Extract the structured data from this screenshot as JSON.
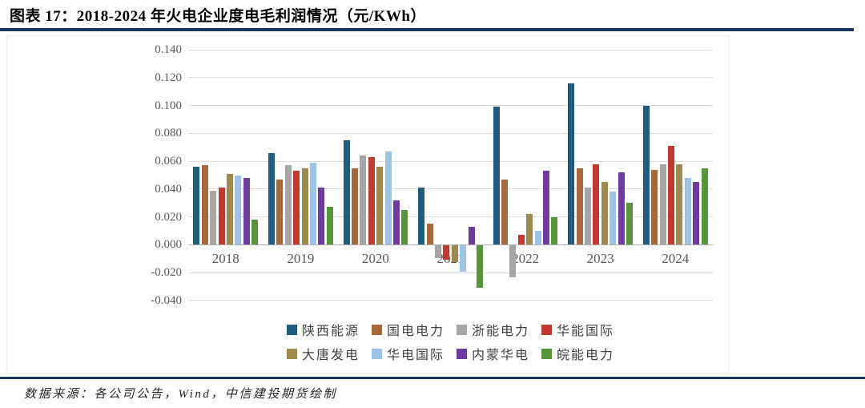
{
  "header": {
    "title": "图表 17：2018-2024 年火电企业度电毛利润情况（元/KWh）",
    "accent_color": "#17375E"
  },
  "footer": {
    "source": "数据来源：各公司公告，Wind，中信建投期货绘制"
  },
  "chart_data": {
    "type": "bar",
    "title": "2018-2024 年火电企业度电毛利润情况",
    "unit": "元/KWh",
    "categories": [
      "2018",
      "2019",
      "2020",
      "2021",
      "2022",
      "2023",
      "2024"
    ],
    "series": [
      {
        "name": "陕西能源",
        "color": "#1F5C7E",
        "values": [
          0.056,
          0.066,
          0.075,
          0.041,
          0.099,
          0.116,
          0.1
        ]
      },
      {
        "name": "国电电力",
        "color": "#A5693C",
        "values": [
          0.057,
          0.047,
          0.055,
          0.015,
          0.047,
          0.055,
          0.054
        ]
      },
      {
        "name": "浙能电力",
        "color": "#A6A6A6",
        "values": [
          0.039,
          0.057,
          0.064,
          -0.009,
          -0.023,
          0.041,
          0.058
        ]
      },
      {
        "name": "华能国际",
        "color": "#C23A2F",
        "values": [
          0.041,
          0.053,
          0.063,
          -0.01,
          0.007,
          0.058,
          0.071
        ]
      },
      {
        "name": "大唐发电",
        "color": "#9E8A50",
        "values": [
          0.051,
          0.055,
          0.056,
          -0.012,
          0.022,
          0.045,
          0.058
        ]
      },
      {
        "name": "华电国际",
        "color": "#9DC3E6",
        "values": [
          0.05,
          0.059,
          0.067,
          -0.019,
          0.01,
          0.038,
          0.048
        ]
      },
      {
        "name": "内蒙华电",
        "color": "#6E3B9E",
        "values": [
          0.048,
          0.041,
          0.032,
          0.013,
          0.053,
          0.052,
          0.045
        ]
      },
      {
        "name": "皖能电力",
        "color": "#56953B",
        "values": [
          0.018,
          0.027,
          0.025,
          -0.03,
          0.02,
          0.03,
          0.055
        ]
      }
    ],
    "ylim": [
      -0.04,
      0.14
    ],
    "ytick_step": 0.02,
    "ytick_labels": [
      "0.140",
      "0.120",
      "0.100",
      "0.080",
      "0.060",
      "0.040",
      "0.020",
      "0.000",
      "-0.020",
      "-0.040"
    ],
    "grid": true,
    "legend_position": "bottom",
    "axis_text_color": "#595959",
    "gridline_color": "#DCDCDC"
  }
}
